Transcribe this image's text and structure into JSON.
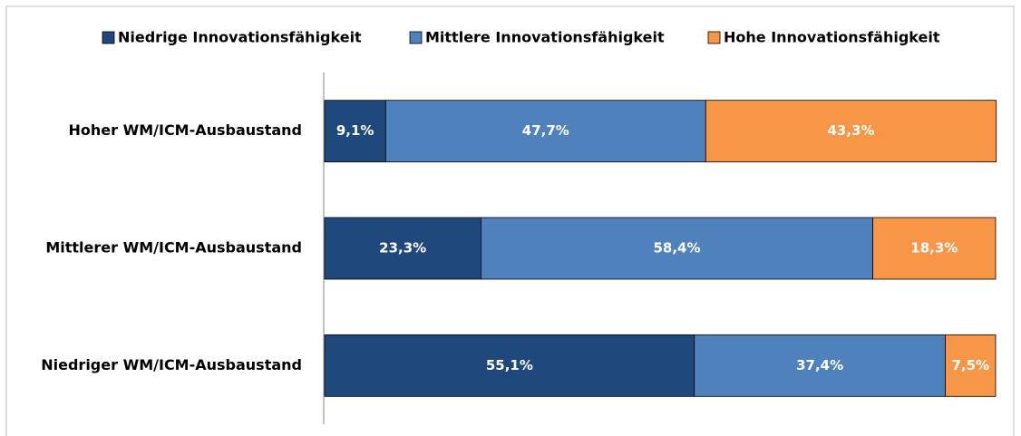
{
  "chart_data": {
    "type": "stacked-bar-horizontal",
    "categories": [
      "Hoher WM/ICM-Ausbaustand",
      "Mittlerer WM/ICM-Ausbaustand",
      "Niedriger WM/ICM-Ausbaustand"
    ],
    "series": [
      {
        "name": "Niedrige Innovationsfähigkeit",
        "color": "#1f497d",
        "values": [
          9.1,
          23.3,
          55.1
        ],
        "value_labels": [
          "9,1%",
          "23,3%",
          "55,1%"
        ]
      },
      {
        "name": "Mittlere Innovationsfähigkeit",
        "color": "#4f81bd",
        "values": [
          47.7,
          58.4,
          37.4
        ],
        "value_labels": [
          "47,7%",
          "58,4%",
          "37,4%"
        ]
      },
      {
        "name": "Hohe Innovationsfähigkeit",
        "color": "#f79646",
        "values": [
          43.3,
          18.3,
          7.5
        ],
        "value_labels": [
          "43,3%",
          "18,3%",
          "7,5%"
        ]
      }
    ],
    "xlim": [
      0,
      100
    ],
    "legend": "top"
  }
}
